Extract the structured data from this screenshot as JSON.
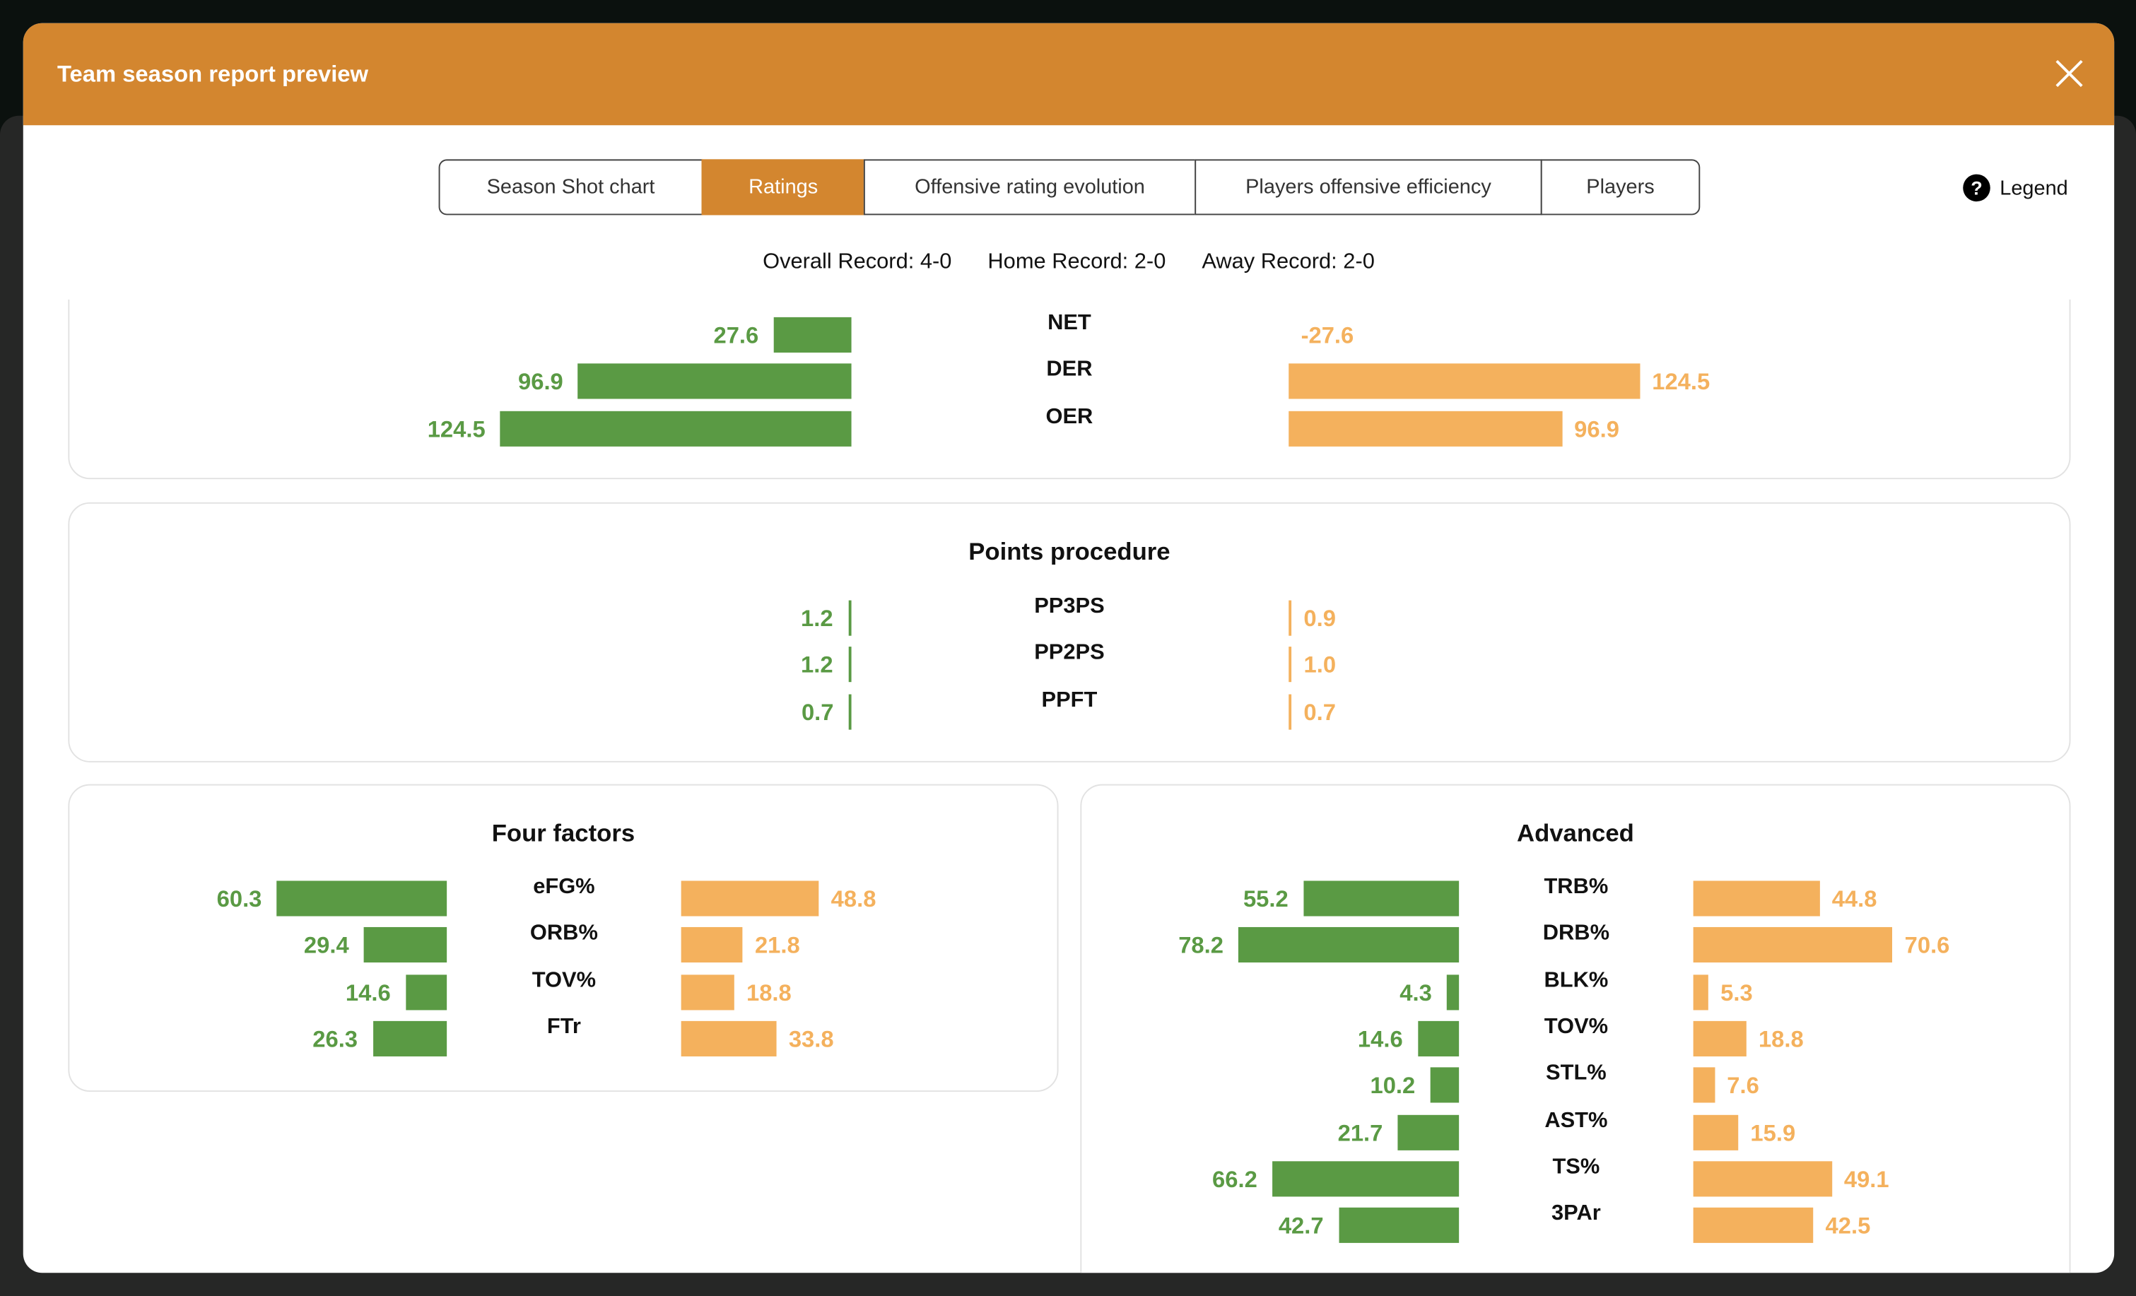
{
  "modal": {
    "title": "Team season report preview"
  },
  "tabs": [
    {
      "label": "Season Shot chart",
      "active": false
    },
    {
      "label": "Ratings",
      "active": true
    },
    {
      "label": "Offensive rating evolution",
      "active": false
    },
    {
      "label": "Players offensive efficiency",
      "active": false
    },
    {
      "label": "Players",
      "active": false
    }
  ],
  "legend_label": "Legend",
  "records": {
    "overall": "Overall Record: 4-0",
    "home": "Home Record: 2-0",
    "away": "Away Record: 2-0"
  },
  "colors": {
    "accent": "#d3862f",
    "team": "#5a9a44",
    "opponent": "#f4b15d"
  },
  "panels": [
    {
      "title": "",
      "rows": [
        {
          "label": "NET",
          "left": 27.6,
          "right": -27.6
        },
        {
          "label": "DER",
          "left": 96.9,
          "right": 124.5
        },
        {
          "label": "OER",
          "left": 124.5,
          "right": 96.9
        }
      ]
    },
    {
      "title": "Points procedure",
      "rows": [
        {
          "label": "PP3PS",
          "left": 1.2,
          "right": 0.9
        },
        {
          "label": "PP2PS",
          "left": 1.2,
          "right": 1.0
        },
        {
          "label": "PPFT",
          "left": 0.7,
          "right": 0.7
        }
      ]
    },
    {
      "title": "Four factors",
      "rows": [
        {
          "label": "eFG%",
          "left": 60.3,
          "right": 48.8
        },
        {
          "label": "ORB%",
          "left": 29.4,
          "right": 21.8
        },
        {
          "label": "TOV%",
          "left": 14.6,
          "right": 18.8
        },
        {
          "label": "FTr",
          "left": 26.3,
          "right": 33.8
        }
      ]
    },
    {
      "title": "Advanced",
      "rows": [
        {
          "label": "TRB%",
          "left": 55.2,
          "right": 44.8
        },
        {
          "label": "DRB%",
          "left": 78.2,
          "right": 70.6
        },
        {
          "label": "BLK%",
          "left": 4.3,
          "right": 5.3
        },
        {
          "label": "TOV%",
          "left": 14.6,
          "right": 18.8
        },
        {
          "label": "STL%",
          "left": 10.2,
          "right": 7.6
        },
        {
          "label": "AST%",
          "left": 21.7,
          "right": 15.9
        },
        {
          "label": "TS%",
          "left": 66.2,
          "right": 49.1
        },
        {
          "label": "3PAr",
          "left": 42.7,
          "right": 42.5
        }
      ]
    }
  ]
}
